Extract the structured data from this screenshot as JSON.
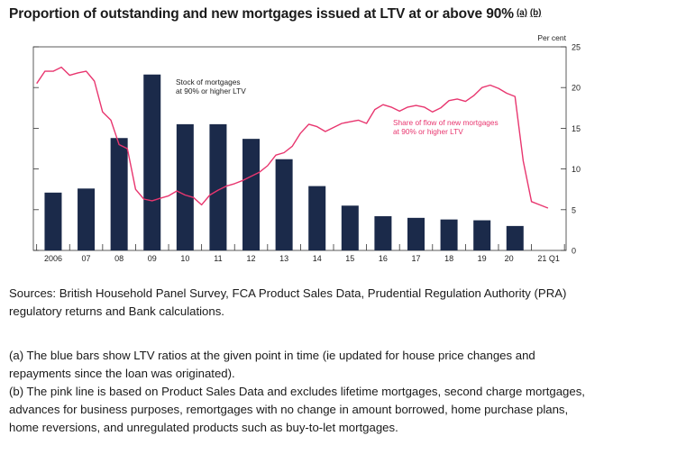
{
  "title": "Proportion of outstanding and new mortgages issued at LTV at or above 90%",
  "title_notes": [
    "(a)",
    "(b)"
  ],
  "chart_data": {
    "type": "bar",
    "y_unit_label": "Per cent",
    "ylim": [
      0,
      25
    ],
    "y_ticks": [
      "0",
      "5",
      "10",
      "15",
      "20",
      "25"
    ],
    "x_tick_labels": [
      "2006",
      "07",
      "08",
      "09",
      "10",
      "11",
      "12",
      "13",
      "14",
      "15",
      "16",
      "17",
      "18",
      "19",
      "20",
      "21 Q1"
    ],
    "series": [
      {
        "name": "Stock of mortgages at 90% or higher LTV",
        "label_lines": [
          "Stock of mortgages",
          "at 90% or higher LTV"
        ],
        "kind": "bar",
        "color": "#1b2a4a",
        "x": [
          2006,
          2007,
          2008,
          2009,
          2010,
          2011,
          2012,
          2013,
          2014,
          2015,
          2016,
          2017,
          2018,
          2019,
          2020
        ],
        "values": [
          7.1,
          7.6,
          13.8,
          21.6,
          15.5,
          15.5,
          13.7,
          11.2,
          7.9,
          5.5,
          4.2,
          4.0,
          3.8,
          3.7,
          3.0
        ]
      },
      {
        "name": "Share of flow of new mortgages at 90% or higher LTV",
        "label_lines": [
          "Share of flow of new mortgages",
          "at 90% or higher LTV"
        ],
        "kind": "line",
        "color": "#e8366f",
        "x": [
          2005.5,
          2005.75,
          2006.0,
          2006.25,
          2006.5,
          2006.75,
          2007.0,
          2007.25,
          2007.5,
          2007.75,
          2008.0,
          2008.25,
          2008.5,
          2008.75,
          2009.0,
          2009.25,
          2009.5,
          2009.75,
          2010.0,
          2010.25,
          2010.5,
          2010.75,
          2011.0,
          2011.25,
          2011.5,
          2011.75,
          2012.0,
          2012.25,
          2012.5,
          2012.75,
          2013.0,
          2013.25,
          2013.5,
          2013.75,
          2014.0,
          2014.25,
          2014.5,
          2014.75,
          2015.0,
          2015.25,
          2015.5,
          2015.75,
          2016.0,
          2016.25,
          2016.5,
          2016.75,
          2017.0,
          2017.25,
          2017.5,
          2017.75,
          2018.0,
          2018.25,
          2018.5,
          2018.75,
          2019.0,
          2019.25,
          2019.5,
          2019.75,
          2020.0,
          2020.25,
          2020.5,
          2020.75,
          2021.0
        ],
        "values": [
          20.5,
          22.0,
          22.0,
          22.5,
          21.5,
          21.8,
          22.0,
          20.8,
          17.0,
          16.0,
          13.0,
          12.5,
          7.5,
          6.3,
          6.1,
          6.4,
          6.7,
          7.3,
          6.8,
          6.5,
          5.6,
          6.8,
          7.4,
          7.9,
          8.2,
          8.6,
          9.1,
          9.6,
          10.4,
          11.7,
          12.0,
          12.8,
          14.4,
          15.5,
          15.2,
          14.6,
          15.1,
          15.6,
          15.8,
          16.0,
          15.6,
          17.3,
          17.9,
          17.6,
          17.1,
          17.6,
          17.8,
          17.6,
          17.0,
          17.5,
          18.4,
          18.6,
          18.3,
          19.0,
          20.0,
          20.3,
          19.9,
          19.3,
          18.9,
          11.0,
          6.0,
          5.6,
          5.2
        ]
      }
    ],
    "grid": false,
    "legend": "inline labels"
  },
  "sources": {
    "line1": "Sources: British Household Panel Survey, FCA Product Sales Data, Prudential Regulation Authority (PRA)",
    "line2": "regulatory returns and Bank calculations."
  },
  "notes": {
    "a_line1": "(a) The blue bars show LTV ratios at the given point in time (ie updated for house price changes and",
    "a_line2": "repayments since the loan was originated).",
    "b_line1": "(b) The pink line is based on Product Sales Data and excludes lifetime mortgages, second charge mortgages,",
    "b_line2": "advances for business purposes, remortgages with no change in amount borrowed, home purchase plans,",
    "b_line3": "home reversions, and unregulated products such as buy-to-let mortgages."
  }
}
